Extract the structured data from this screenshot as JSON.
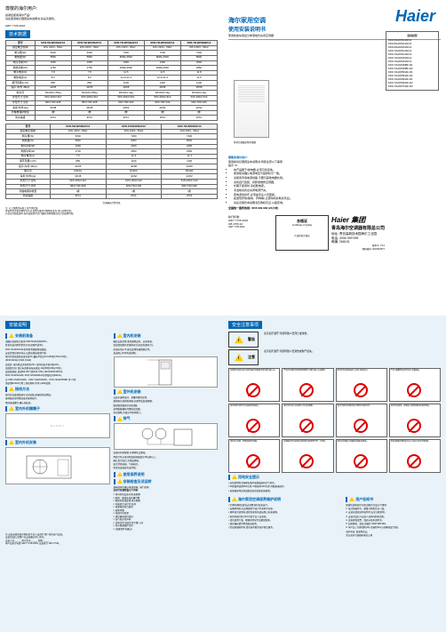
{
  "greeting": "尊敬的海尔用户:",
  "subgreet": {
    "l1": "感谢您使用海尔产品!",
    "l2": "请在使用前仔细阅读本说明书,并妥善保管。",
    "l3": "使用说明书",
    "l4": "家用和类似用途分体落地式房间空调器"
  },
  "std_ref": "GB/T 7725-2004",
  "spec_hdr": "技术数据",
  "spec_cols": [
    "项目",
    "",
    "",
    "",
    "",
    ""
  ],
  "spec": {
    "rows": [
      [
        "型号",
        "KFR-50LW/01NAF12",
        "KFR-50LW/01NAF13",
        "KFR-72LW/01NAF12",
        "KFR-72LW/01NAF13",
        "KFR-72LW/03NBF12"
      ],
      [
        "额定电压/频率",
        "1PH 220V~ 50Hz",
        "1PH 220V~ 50Hz",
        "1PH 220V~ 50Hz",
        "1PH 220V~ 50Hz",
        "1PH 220V~ 50Hz"
      ],
      [
        "制冷量(W)",
        "5000",
        "5000",
        "7200",
        "7200",
        "7200"
      ],
      [
        "制热量(W)",
        "5800",
        "5800",
        "8000+2500",
        "8000+2500",
        "8000"
      ],
      [
        "制冷功率(W)",
        "1650",
        "1650",
        "2450",
        "2450",
        "2500"
      ],
      [
        "制热功率(W)",
        "1750",
        "1750",
        "2600+2500",
        "2600+2500",
        "2650"
      ],
      [
        "制冷电流(A)",
        "7.8",
        "7.8",
        "11.5",
        "11.5",
        "11.8"
      ],
      [
        "制热电流(A)",
        "8.2",
        "8.2",
        "12.2+11.4",
        "12.2+11.4",
        "12.5"
      ],
      [
        "循环风量(m³/h)",
        "850",
        "850",
        "1100",
        "1100",
        "1100"
      ],
      [
        "噪声 内/外 dB(A)",
        "42/55",
        "42/55",
        "46/58",
        "46/58",
        "46/58"
      ],
      [
        "制冷剂",
        "R410A/1.65kg",
        "R410A/1.65kg",
        "R410A/2.1kg",
        "R410A/2.1kg",
        "R410A/2.1kg"
      ],
      [
        "外形尺寸 室内",
        "515×1810×310",
        "515×1810×310",
        "515×1810×310",
        "515×1810×310",
        "515×1810×310"
      ],
      [
        "外形尺寸 室外",
        "860×730×308",
        "860×730×308",
        "900×790×330",
        "900×790×330",
        "900×790×330"
      ],
      [
        "净重 内/外(kg)",
        "40/48",
        "40/48",
        "42/62",
        "42/62",
        "42/62"
      ],
      [
        "防触电保护类型",
        "I类",
        "I类",
        "I类",
        "I类",
        "I类"
      ],
      [
        "防水等级",
        "IPX4",
        "IPX4",
        "IPX4",
        "IPX4",
        "IPX4"
      ]
    ],
    "rows2": [
      [
        "型号",
        "KFR-50LW/02NAF12",
        "KFR-72LW/02NAF12",
        "KFR-72LW/02NAF13"
      ],
      [
        "额定电压/频率",
        "1PH 220V~ 50Hz",
        "1PH 220V~ 50Hz",
        "1PH 220V~ 50Hz"
      ],
      [
        "制冷量(W)",
        "5000",
        "7200",
        "7200"
      ],
      [
        "制热量(W)",
        "5800",
        "8000",
        "8000"
      ],
      [
        "制冷功率(W)",
        "1600",
        "2400",
        "2400"
      ],
      [
        "制热功率(W)",
        "1700",
        "2550",
        "2550"
      ],
      [
        "制冷电流(A)",
        "7.5",
        "11.3",
        "11.3"
      ],
      [
        "循环风量(m³/h)",
        "850",
        "1100",
        "1100"
      ],
      [
        "噪声 内/外 dB(A)",
        "42/55",
        "46/58",
        "46/58"
      ],
      [
        "制冷剂",
        "R410A",
        "R410A",
        "R410A"
      ],
      [
        "净重 内/外(kg)",
        "40/48",
        "42/62",
        "42/62"
      ],
      [
        "外形尺寸 室内",
        "515×1810×310",
        "515×1810×310",
        "515×1810×310"
      ],
      [
        "外形尺寸 室外",
        "860×730×308",
        "900×790×330",
        "900×790×330"
      ],
      [
        "防触电保护类型",
        "I类",
        "I类",
        "I类"
      ],
      [
        "防水等级",
        "IPX4",
        "IPX4",
        "IPX4"
      ]
    ]
  },
  "spec_note": "空调器运行条件表",
  "spec_notes": [
    "注: 以上参数为标准工况下测定值。",
    "    本说明书涉及多种型号产品,实物与图示可能略有差异,请以实物为准。",
    "    产品在持续改进中,如有变更恕不另行通知,具体参数请以产品铭牌为准。"
  ],
  "brand": "Haier",
  "manual": {
    "t1": "海尔家用空调",
    "t2": "使用安装说明书",
    "desc": "家用和类似用途分体落地式房间空调器"
  },
  "models": {
    "hdr": "适用机型",
    "list": [
      "KFR-50LW/01NAF12",
      "KFR-50LW/01NAF13",
      "KFR-50LW/02NAF12",
      "KFR-72LW/01NAF12",
      "KFR-72LW/01NAF13",
      "KFR-72LW/02NAF12",
      "KFR-72LW/02NAF13",
      "KFR-72LW/03NBF-R1",
      "KFR-72LW/03NBF-R2",
      "KFR-72LW/05NAF-R1",
      "KFR-72LW/05NAF-R2",
      "KFR-72LW/06NAF-R1",
      "KFR-72LW/06NAF-R2",
      "KFR-72LW/07NAF-R3"
    ]
  },
  "accap": "柜式空调器实物示意图",
  "usernotes": {
    "hdr": "尊敬的海尔用户:",
    "hdr2": "使用前请仔细阅读本说明书,特别注意以下事项:",
    "tip": "提示:\"●\"",
    "items": [
      "本产品属于Ⅰ类电器,必须可靠接地。",
      "使用前请确认电源电压与铭牌标示一致。",
      "请使用专用电源线路,不要与其他电器共用。",
      "请勿自行改装、拆卸或维修空调器。",
      "长期不使用时,请切断电源。",
      "清洁前请务必关闭电源开关。",
      "若电源线损坏,必须由专业人员更换。",
      "如发现异常(焦味、异响等),立即停机并联系售后。",
      "请妥善保管本说明书及购机凭证,以备查询。"
    ],
    "svc": "全国统一服务热线: 4006 999 999 (24小时)"
  },
  "qual": {
    "hdr": "合格证",
    "en": "Certificate of Quality",
    "insp": "产品检验合格证"
  },
  "company": {
    "logo": "Haier 集团",
    "name": "青岛海尔空调器有限总公司",
    "addr": "地址: 青岛高新技术园海尔工业园",
    "tel": "电话: 4006 999 999",
    "zip": "邮编: 266101",
    "ver": "版本号: V1.0",
    "code": "物料编码: 0010518677"
  },
  "std2": {
    "l1": "执行标准:",
    "l2": "GB/T 7725-2004",
    "l3": "GB 4706.32"
  },
  "install": {
    "hdr": "安装说明",
    "s1": {
      "hdr": "安装前准备",
      "text": [
        "请确认电源符合要求:KFR-50LW系列220V~",
        "检查包装内附件是否齐全(见附件清单)。",
        "KFR-72LW/01NAF系列需单独配置电源线。",
        "安装位置应便于排水,远离热源和易燃气体。",
        "室内外机连接管长度标准3m,最长不超过10m(50型)/15m(72型)。",
        "(KFR-50LW)/ (KFR-72LW)",
        "高低差: 室内机高于室外机≤5m; 室外机高于室内机≤8m。",
        "追加制冷剂: 超过标准管长每米追加 20g(50型)/30g(72型)。",
        "连接管规格: 液管Φ6.35/气管Φ12.7(50); Φ9.52/Φ15.88(72)",
        "KFR-72LW/01NAF, KFR-72LW/02NAF系列制冷剂R410A。",
        "",
        "注:KFR-72LW/01NAF、KFR-72LW/02NAF、KFR-72LW/03NBF 等 72型",
        "    须使用R410A专用工具和材料,不可与R22混用。"
      ]
    },
    "s2": {
      "hdr": "接线方法",
      "text": [
        "室内外连接线按编号对应接线,黄绿线为接地线。",
        "接地线必须可靠连接至接地端子。",
        "紧固接线螺钉,确认无松动。"
      ]
    },
    "s3": {
      "hdr": "室内外机端端子",
      "text": [
        "N L 1 2 3 对应连接,接地可靠。"
      ]
    },
    "s4": {
      "hdr": "室内外机安装"
    },
    "s5": {
      "hdr": "室内机安装",
      "text": [
        "确定安装位置,要求通风良好、远离热源。",
        "保证四周留有足够检修空间(见右图尺寸)。",
        "底部必须水平,建议使用防倾倒固定件。",
        "进出风口不得有遮挡物。"
      ]
    },
    "s6": {
      "hdr": "室外机安装",
      "text": [
        "安装于通风良好、承重可靠的位置。",
        "避免阳光直射和雨淋,必要时加装遮阳棚。",
        "四周留足散热空间(见图)。",
        "使用膨胀螺栓可靠固定底脚。",
        "排水顺畅,冷凝水不影响他人。"
      ]
    },
    "s7": {
      "hdr": "排气",
      "text": [
        "连接内外机配管,拧紧喇叭口螺母。",
        "用真空泵从室外机维修阀抽真空15分钟以上。",
        "确认真空度后,关闭歧管阀。",
        "依次打开液阀、气阀阀芯。",
        "检查各连接处有无泄漏。"
      ]
    },
    "s8": {
      "hdr": "使用保养说明"
    },
    "s9": {
      "hdr": "安装检查及试运转",
      "text": [
        "通电前再次确认接线正确、阀门全开。"
      ]
    },
    "chk": {
      "hdr": "试运行前请检查以下内容:",
      "items": [
        "室内外机安装牢固,无倾斜",
        "配管、配线连接正确可靠",
        "配管已保温处理,排水顺畅",
        "已抽真空,阀门已全开",
        "电源电压符合要求",
        "接地可靠",
        "无制冷剂泄漏",
        "遥控器电池已装好",
        "运行无异常声响",
        "送风正常,温度正常下降/上升",
        "各功能键操作正常",
        "(请逐项打勾确认)"
      ]
    },
    "footnote": [
      "注:安装必须由海尔授权的专业人员进行,用户请勿自行安装。",
      "    安装完成后,请用户在安装确认单上签字。",
      "    安装人员:_____ 用户签字:_____ 日期:_____",
      "    本产品执行标准 GB/T 7725-2004; 安装执行 GB 17790。"
    ]
  },
  "safety": {
    "hdr": "安全注意事项",
    "warn": {
      "hdr": "警告",
      "desc": "表示如不遵守,可能导致人员死亡或重伤。"
    },
    "caution": {
      "hdr": "注意",
      "desc": "表示如不遵守,可能导致人员受伤或财产损失。"
    },
    "cells": [
      "电源线不得加长或与其他电器共用插座,否则可能引起火灾。",
      "严禁在空调附近使用易燃喷雾剂,可能引起火灾或爆炸。",
      "请勿将手指或物品伸入出风口和进风口。",
      "严禁儿童攀爬或在室外机上放置物品。",
      "请勿用湿手操作开关或插拔电源插头。",
      "请勿长时间让冷风直吹人体,有害健康。",
      "清洁时请务必切断电源,不要用水直接冲洗。",
      "发现异常(焦味、冒烟等)立即停机断电并联系售后。",
      "请勿自行拆卸、修理或改装空调器。",
      "空调器必须可靠接地,接地线不得接至煤气管、水管等。",
      "请勿在空调器上放置盛水容器(花瓶等)。",
      "移机或报废处理须由专业人员进行,制冷剂须回收。"
    ],
    "elec": {
      "hdr": "用电安全提示",
      "text": [
        "必须使用符合国家标准的电源插座和空气开关。",
        "50型推荐使用25A空开,72型推荐32A空开,并配漏电保护。",
        "电源线损坏必须由制造商或其维修部更换。"
      ]
    },
    "clean": {
      "hdr": "海尔家用空调保养维护说明",
      "text": [
        "定期(每两周)清洗过滤网,保持高效运行。",
        "长期停用前,在送风模式下运行半天吹干内部。",
        "换季首次使用前,请检查室外机进出风口有无堵塞。",
        "室外机翅片脏污时,可请专业人员清洗。",
        "请勿使用汽油、稀释剂等化学品擦拭机体。",
        "遥控器长期不用请取出电池。",
        "若出现故障代码,请记录并联系海尔售后服务。"
      ]
    },
    "user": {
      "hdr": "用户告知书",
      "text": [
        "感谢您选购海尔空调,请配合完成以下事项:",
        "1. 核对机器型号、数量与购机凭证一致。",
        "2. 安装前请阅读本说明书'安全注意事项'。",
        "3. 安装完成后与安装人员共同验收试机。",
        "4. 妥善保管发票、保修卡及本说明书。",
        "5. 如需移机、维修,请拨打 4006 999 999。",
        "6. 本产品三包期:整机1年,压缩机3年(以国家规定为准)。",
        "海尔承诺: 真诚到永远。",
        "青岛海尔空调器有限总公司"
      ]
    }
  }
}
